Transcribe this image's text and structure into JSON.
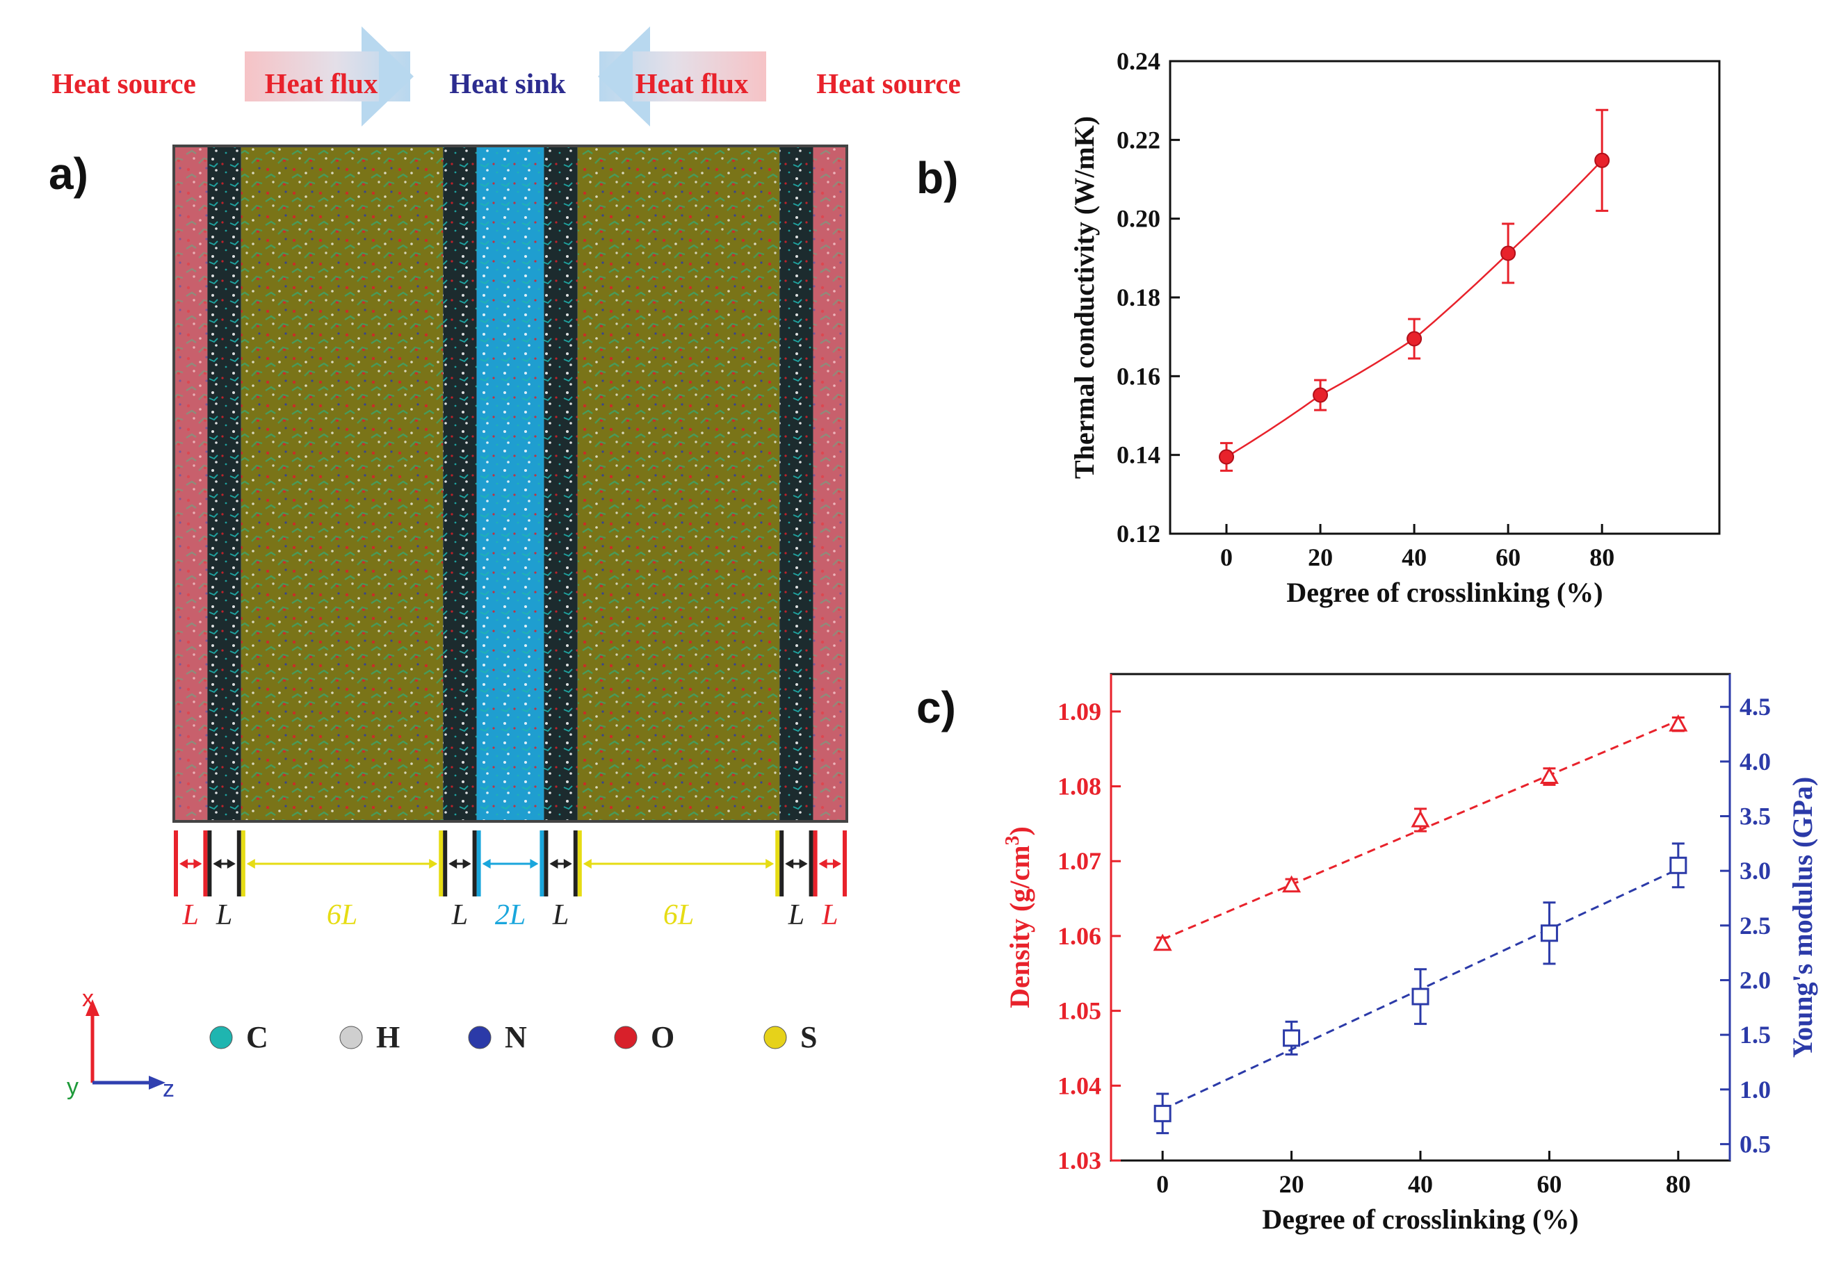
{
  "panel_a": {
    "label": "a)",
    "header": {
      "heat_source_left": "Heat source",
      "heat_flux_left": "Heat flux",
      "heat_sink": "Heat sink",
      "heat_flux_right": "Heat flux",
      "heat_source_right": "Heat source"
    },
    "regions": [
      {
        "label": "L",
        "width_units": 1,
        "kind": "source"
      },
      {
        "label": "L",
        "width_units": 1,
        "kind": "buffer"
      },
      {
        "label": "6L",
        "width_units": 6,
        "kind": "polymer"
      },
      {
        "label": "L",
        "width_units": 1,
        "kind": "buffer"
      },
      {
        "label": "2L",
        "width_units": 2,
        "kind": "sink"
      },
      {
        "label": "L",
        "width_units": 1,
        "kind": "buffer"
      },
      {
        "label": "6L",
        "width_units": 6,
        "kind": "polymer"
      },
      {
        "label": "L",
        "width_units": 1,
        "kind": "buffer"
      },
      {
        "label": "L",
        "width_units": 1,
        "kind": "source"
      }
    ],
    "axes": {
      "x": "x",
      "y": "y",
      "z": "z"
    },
    "legend": [
      {
        "symbol": "C",
        "color": "#1fb5b0"
      },
      {
        "symbol": "H",
        "color": "#cfcfcf"
      },
      {
        "symbol": "N",
        "color": "#2b3aa8"
      },
      {
        "symbol": "O",
        "color": "#d8202a"
      },
      {
        "symbol": "S",
        "color": "#e6d21a"
      }
    ],
    "colors": {
      "source": "#e8222b",
      "buffer": "#222222",
      "polymer": "#e6dc14",
      "sink": "#1aa6dc",
      "heat_text_red": "#e8222b",
      "heat_text_blue": "#2c2c8f"
    }
  },
  "chart_data": [
    {
      "panel": "b)",
      "type": "line",
      "xlabel": "Degree of crosslinking (%)",
      "ylabel": "Thermal conductivity (W/mK)",
      "xlim": [
        -12,
        105
      ],
      "ylim": [
        0.12,
        0.24
      ],
      "xticks": [
        0,
        20,
        40,
        60,
        80
      ],
      "yticks": [
        0.12,
        0.14,
        0.16,
        0.18,
        0.2,
        0.22,
        0.24
      ],
      "ytick_labels": [
        "0.12",
        "0.14",
        "0.16",
        "0.18",
        "0.20",
        "0.22",
        "0.24"
      ],
      "x": [
        0,
        20,
        40,
        60,
        80
      ],
      "y": [
        0.1395,
        0.1552,
        0.1695,
        0.1912,
        0.2148
      ],
      "err": [
        0.0035,
        0.0038,
        0.005,
        0.0075,
        0.0128
      ],
      "color": "#e8222b",
      "grid": false
    },
    {
      "panel": "c)",
      "type": "scatter",
      "xlabel": "Degree of crosslinking (%)",
      "xlim": [
        -8,
        88
      ],
      "xticks": [
        0,
        20,
        40,
        60,
        80
      ],
      "series": [
        {
          "axis": "left",
          "ylabel": "Density (g/cm",
          "ylabel_sup": "3",
          "ylabel_end": ")",
          "ylim": [
            1.03,
            1.095
          ],
          "yticks": [
            1.03,
            1.04,
            1.05,
            1.06,
            1.07,
            1.08,
            1.09
          ],
          "ytick_labels": [
            "1.03",
            "1.04",
            "1.05",
            "1.06",
            "1.07",
            "1.08",
            "1.09"
          ],
          "marker": "triangle",
          "x": [
            0,
            20,
            40,
            60,
            80
          ],
          "y": [
            1.059,
            1.0668,
            1.0755,
            1.0813,
            1.0883
          ],
          "err": [
            0.0008,
            0.0008,
            0.0015,
            0.0011,
            0.0009
          ],
          "color": "#e8222b"
        },
        {
          "axis": "right",
          "ylabel": "Young's modulus (GPa)",
          "ylim": [
            0.35,
            4.8
          ],
          "yticks": [
            0.5,
            1.0,
            1.5,
            2.0,
            2.5,
            3.0,
            3.5,
            4.0,
            4.5
          ],
          "ytick_labels": [
            "0.5",
            "1.0",
            "1.5",
            "2.0",
            "2.5",
            "3.0",
            "3.5",
            "4.0",
            "4.5"
          ],
          "marker": "square",
          "x": [
            0,
            20,
            40,
            60,
            80
          ],
          "y": [
            0.78,
            1.47,
            1.85,
            2.43,
            3.05
          ],
          "err": [
            0.18,
            0.15,
            0.25,
            0.28,
            0.2
          ],
          "color": "#2b3aa8"
        }
      ],
      "grid": false
    }
  ]
}
